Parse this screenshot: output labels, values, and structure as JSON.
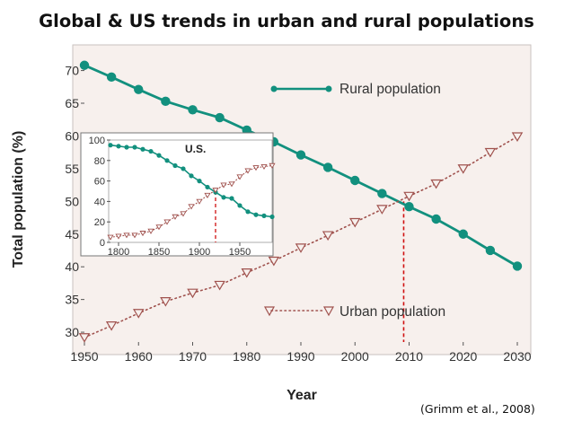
{
  "title": "Global & US trends in urban and rural populations",
  "source": "(Grimm et al., 2008)",
  "colors": {
    "rural": "#12907e",
    "urban": "#a0524e",
    "marker_line": "#d01010",
    "plot_bg": "#f7f0ed"
  },
  "chart_data": [
    {
      "id": "main",
      "type": "line",
      "title": "",
      "xlabel": "Year",
      "ylabel": "Total population (%)",
      "xlim": [
        1950,
        2030
      ],
      "ylim": [
        28.5,
        72
      ],
      "xticks": [
        1950,
        1960,
        1970,
        1980,
        1990,
        2000,
        2010,
        2020,
        2030
      ],
      "yticks": [
        30,
        35,
        40,
        45,
        50,
        55,
        60,
        65,
        70
      ],
      "legend": "inside",
      "series": [
        {
          "name": "Rural population",
          "marker": "circle",
          "x": [
            1950,
            1955,
            1960,
            1965,
            1970,
            1975,
            1980,
            1985,
            1990,
            1995,
            2000,
            2005,
            2010,
            2015,
            2020,
            2025,
            2030
          ],
          "values": [
            70.8,
            69.0,
            67.1,
            65.3,
            64.0,
            62.8,
            60.9,
            59.1,
            57.1,
            55.2,
            53.2,
            51.2,
            49.2,
            47.3,
            45.0,
            42.5,
            40.1
          ]
        },
        {
          "name": "Urban population",
          "marker": "triangle-down",
          "x": [
            1950,
            1955,
            1960,
            1965,
            1970,
            1975,
            1980,
            1985,
            1990,
            1995,
            2000,
            2005,
            2010,
            2015,
            2020,
            2025,
            2030
          ],
          "values": [
            29.2,
            31.0,
            32.9,
            34.7,
            36.0,
            37.2,
            39.1,
            40.9,
            42.9,
            44.8,
            46.8,
            48.8,
            50.8,
            52.7,
            55.0,
            57.5,
            59.9
          ]
        }
      ],
      "annotations": [
        {
          "type": "vline",
          "x": 2009,
          "y_to": 50.0
        }
      ]
    },
    {
      "id": "inset",
      "type": "line",
      "title": "U.S.",
      "xlim": [
        1790,
        1990
      ],
      "ylim": [
        0,
        100
      ],
      "xticks": [
        1800,
        1850,
        1900,
        1950
      ],
      "yticks": [
        0,
        20,
        40,
        60,
        80,
        100
      ],
      "series": [
        {
          "name": "Rural",
          "marker": "circle",
          "x": [
            1790,
            1800,
            1810,
            1820,
            1830,
            1840,
            1850,
            1860,
            1870,
            1880,
            1890,
            1900,
            1910,
            1920,
            1930,
            1940,
            1950,
            1960,
            1970,
            1980,
            1990
          ],
          "values": [
            95,
            94,
            93,
            93,
            91,
            89,
            85,
            80,
            75,
            72,
            65,
            60,
            54,
            49,
            44,
            43,
            36,
            30,
            27,
            26,
            25
          ]
        },
        {
          "name": "Urban",
          "marker": "triangle-down",
          "x": [
            1790,
            1800,
            1810,
            1820,
            1830,
            1840,
            1850,
            1860,
            1870,
            1880,
            1890,
            1900,
            1910,
            1920,
            1930,
            1940,
            1950,
            1960,
            1970,
            1980,
            1990
          ],
          "values": [
            5,
            6,
            7,
            7,
            9,
            11,
            15,
            20,
            25,
            28,
            35,
            40,
            46,
            51,
            56,
            57,
            64,
            70,
            73,
            74,
            75
          ]
        }
      ],
      "annotations": [
        {
          "type": "vline",
          "x": 1920,
          "y_to": 50
        }
      ]
    }
  ]
}
